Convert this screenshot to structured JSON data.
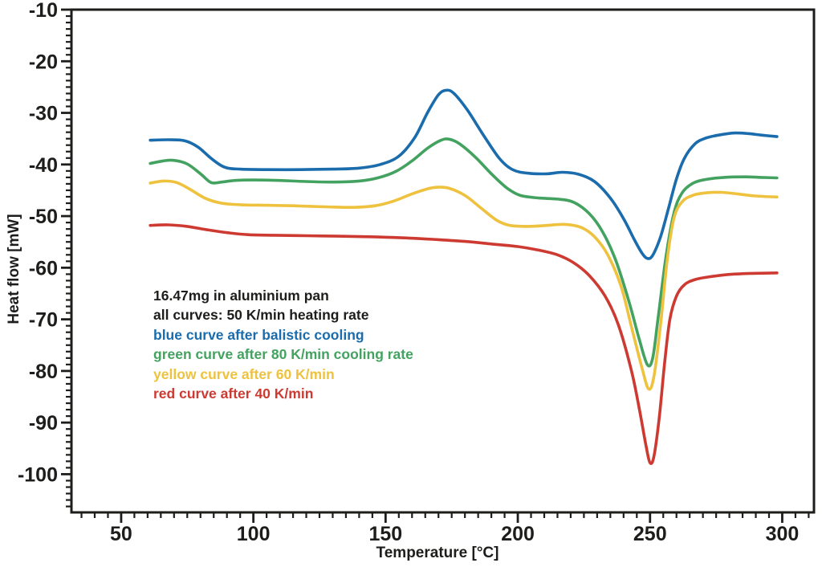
{
  "colors": {
    "axis": "#1d1d1b",
    "background": "#ffffff",
    "blue": "#1a6cac",
    "green": "#43a25f",
    "yellow": "#eec23e",
    "red": "#cd3a32"
  },
  "chart_data": {
    "type": "line",
    "title": "",
    "xlabel": "Temperature [°C]",
    "ylabel": "Heat flow [mW]",
    "xlim": [
      31.2,
      312
    ],
    "ylim": [
      -107.4,
      -10
    ],
    "grid": false,
    "legend_position": "none (colored annotation text block inside plot area)",
    "x_ticks": {
      "major": [
        50,
        100,
        150,
        200,
        250,
        300
      ],
      "minor_step": 5
    },
    "y_ticks": {
      "major": [
        -10,
        -20,
        -30,
        -40,
        -50,
        -60,
        -70,
        -80,
        -90,
        -100
      ],
      "minor_step": 1.25
    },
    "series": [
      {
        "name": "blue curve after balistic cooling",
        "color": "#1a6cac",
        "points": [
          [
            61,
            -35.3
          ],
          [
            68,
            -35.2
          ],
          [
            74,
            -35.4
          ],
          [
            79,
            -36.6
          ],
          [
            84,
            -38.8
          ],
          [
            89,
            -40.5
          ],
          [
            95,
            -40.9
          ],
          [
            105,
            -41.0
          ],
          [
            118,
            -41.0
          ],
          [
            130,
            -40.9
          ],
          [
            140,
            -40.7
          ],
          [
            148,
            -40.0
          ],
          [
            155,
            -38.4
          ],
          [
            161,
            -34.8
          ],
          [
            166,
            -29.8
          ],
          [
            170,
            -26.5
          ],
          [
            173,
            -25.6
          ],
          [
            176,
            -26.3
          ],
          [
            181,
            -29.5
          ],
          [
            187,
            -34.3
          ],
          [
            193,
            -38.8
          ],
          [
            198,
            -41.0
          ],
          [
            204,
            -41.7
          ],
          [
            211,
            -41.8
          ],
          [
            217,
            -41.5
          ],
          [
            223,
            -41.9
          ],
          [
            229,
            -43.3
          ],
          [
            235,
            -46.5
          ],
          [
            240,
            -50.5
          ],
          [
            244,
            -54.5
          ],
          [
            247,
            -57.2
          ],
          [
            249,
            -58.2
          ],
          [
            251,
            -57.6
          ],
          [
            254,
            -54.0
          ],
          [
            257,
            -48.5
          ],
          [
            260,
            -42.8
          ],
          [
            263,
            -38.8
          ],
          [
            267,
            -36.0
          ],
          [
            271,
            -34.9
          ],
          [
            276,
            -34.3
          ],
          [
            282,
            -33.9
          ],
          [
            287,
            -34.0
          ],
          [
            292,
            -34.3
          ],
          [
            298,
            -34.6
          ]
        ]
      },
      {
        "name": "green curve after 80 K/min cooling rate",
        "color": "#43a25f",
        "points": [
          [
            61,
            -39.8
          ],
          [
            66,
            -39.3
          ],
          [
            70,
            -39.2
          ],
          [
            75,
            -39.9
          ],
          [
            80,
            -41.8
          ],
          [
            84,
            -43.5
          ],
          [
            88,
            -43.4
          ],
          [
            93,
            -43.1
          ],
          [
            100,
            -43.0
          ],
          [
            110,
            -43.1
          ],
          [
            120,
            -43.3
          ],
          [
            130,
            -43.4
          ],
          [
            140,
            -43.2
          ],
          [
            147,
            -42.6
          ],
          [
            154,
            -41.3
          ],
          [
            160,
            -39.3
          ],
          [
            166,
            -36.8
          ],
          [
            171,
            -35.3
          ],
          [
            174,
            -35.1
          ],
          [
            178,
            -36.0
          ],
          [
            184,
            -38.6
          ],
          [
            190,
            -41.8
          ],
          [
            196,
            -44.6
          ],
          [
            201,
            -46.0
          ],
          [
            208,
            -46.5
          ],
          [
            215,
            -46.7
          ],
          [
            221,
            -47.3
          ],
          [
            227,
            -49.5
          ],
          [
            232,
            -53.0
          ],
          [
            237,
            -58.5
          ],
          [
            242,
            -66.5
          ],
          [
            246,
            -74.0
          ],
          [
            249,
            -78.8
          ],
          [
            251,
            -77.5
          ],
          [
            253,
            -70.0
          ],
          [
            256,
            -58.0
          ],
          [
            259,
            -49.5
          ],
          [
            262,
            -45.6
          ],
          [
            266,
            -43.7
          ],
          [
            271,
            -42.9
          ],
          [
            278,
            -42.5
          ],
          [
            286,
            -42.4
          ],
          [
            292,
            -42.5
          ],
          [
            298,
            -42.6
          ]
        ]
      },
      {
        "name": "yellow curve after 60 K/min",
        "color": "#eec23e",
        "points": [
          [
            61,
            -43.6
          ],
          [
            66,
            -43.2
          ],
          [
            71,
            -43.5
          ],
          [
            76,
            -44.8
          ],
          [
            82,
            -46.6
          ],
          [
            88,
            -47.5
          ],
          [
            95,
            -47.8
          ],
          [
            105,
            -47.9
          ],
          [
            115,
            -48.0
          ],
          [
            127,
            -48.2
          ],
          [
            138,
            -48.3
          ],
          [
            146,
            -48.0
          ],
          [
            153,
            -47.1
          ],
          [
            160,
            -45.7
          ],
          [
            166,
            -44.7
          ],
          [
            170,
            -44.4
          ],
          [
            174,
            -44.6
          ],
          [
            180,
            -46.0
          ],
          [
            186,
            -48.4
          ],
          [
            192,
            -50.8
          ],
          [
            197,
            -51.8
          ],
          [
            204,
            -52.0
          ],
          [
            211,
            -51.8
          ],
          [
            218,
            -51.6
          ],
          [
            224,
            -52.2
          ],
          [
            229,
            -54.0
          ],
          [
            234,
            -57.5
          ],
          [
            239,
            -63.5
          ],
          [
            243,
            -71.5
          ],
          [
            247,
            -79.5
          ],
          [
            249.5,
            -83.5
          ],
          [
            251.5,
            -81.0
          ],
          [
            254,
            -71.0
          ],
          [
            256.5,
            -58.5
          ],
          [
            259,
            -50.5
          ],
          [
            262,
            -47.3
          ],
          [
            266,
            -46.0
          ],
          [
            271,
            -45.5
          ],
          [
            277,
            -45.4
          ],
          [
            283,
            -45.7
          ],
          [
            290,
            -46.1
          ],
          [
            298,
            -46.3
          ]
        ]
      },
      {
        "name": "red curve after 40 K/min",
        "color": "#cd3a32",
        "points": [
          [
            61,
            -51.8
          ],
          [
            68,
            -51.7
          ],
          [
            75,
            -52.0
          ],
          [
            82,
            -52.6
          ],
          [
            90,
            -53.2
          ],
          [
            98,
            -53.6
          ],
          [
            108,
            -53.7
          ],
          [
            120,
            -53.8
          ],
          [
            132,
            -53.9
          ],
          [
            144,
            -54.0
          ],
          [
            156,
            -54.2
          ],
          [
            168,
            -54.5
          ],
          [
            180,
            -54.9
          ],
          [
            190,
            -55.4
          ],
          [
            200,
            -55.9
          ],
          [
            208,
            -56.6
          ],
          [
            215,
            -57.5
          ],
          [
            221,
            -59.0
          ],
          [
            227,
            -61.5
          ],
          [
            233,
            -65.5
          ],
          [
            238,
            -71.0
          ],
          [
            243,
            -80.0
          ],
          [
            246,
            -87.5
          ],
          [
            248.5,
            -94.5
          ],
          [
            250,
            -97.8
          ],
          [
            251.5,
            -96.5
          ],
          [
            253.5,
            -89.0
          ],
          [
            255.5,
            -78.5
          ],
          [
            257.5,
            -70.0
          ],
          [
            260,
            -65.5
          ],
          [
            263,
            -63.3
          ],
          [
            267,
            -62.3
          ],
          [
            272,
            -61.8
          ],
          [
            280,
            -61.3
          ],
          [
            288,
            -61.1
          ],
          [
            298,
            -61.0
          ]
        ]
      }
    ]
  },
  "annotation": {
    "lines": [
      {
        "text": "16.47mg in aluminium pan",
        "color": "#1d1d1b"
      },
      {
        "text": "all curves: 50 K/min heating rate",
        "color": "#1d1d1b"
      },
      {
        "text": "blue curve after balistic cooling",
        "color": "#1a6cac"
      },
      {
        "text": "green curve after 80 K/min cooling rate",
        "color": "#43a25f"
      },
      {
        "text": "yellow curve after 60 K/min",
        "color": "#eec23e"
      },
      {
        "text": "red curve after 40 K/min",
        "color": "#cd3a32"
      }
    ]
  }
}
